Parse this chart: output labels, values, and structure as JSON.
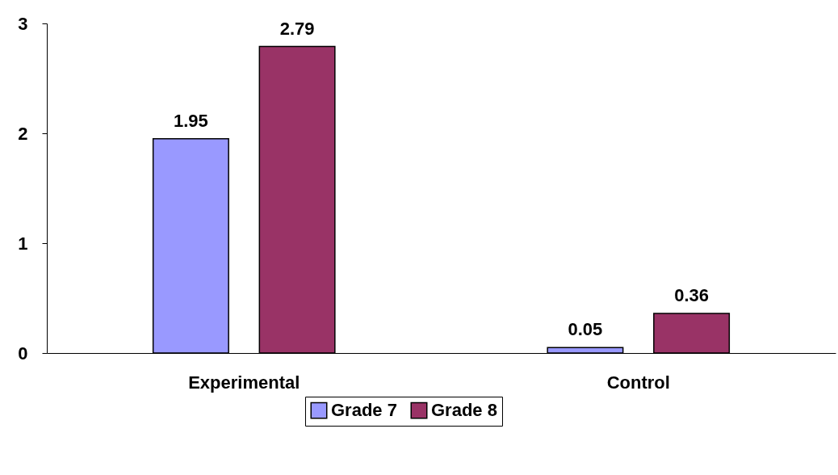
{
  "chart_data": {
    "type": "bar",
    "categories": [
      "Experimental",
      "Control"
    ],
    "series": [
      {
        "name": "Grade 7",
        "color": "#9999ff",
        "values": [
          1.95,
          0.05
        ]
      },
      {
        "name": "Grade 8",
        "color": "#993366",
        "values": [
          2.79,
          0.36
        ]
      }
    ],
    "ylim": [
      0,
      3
    ],
    "yticks": [
      0,
      1,
      2,
      3
    ],
    "grid": false,
    "legend": "bottom",
    "data_labels": true
  }
}
